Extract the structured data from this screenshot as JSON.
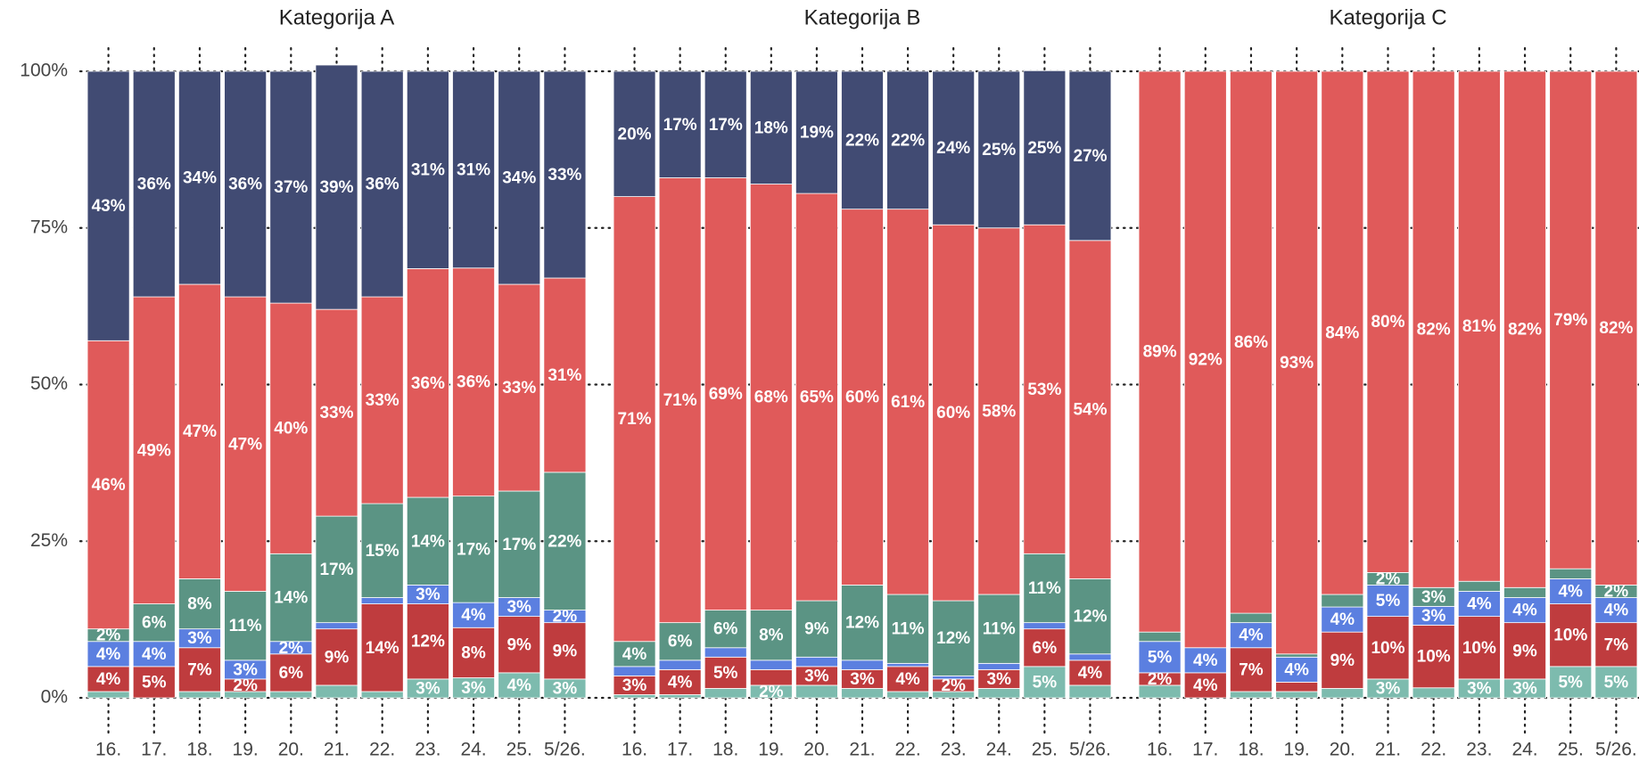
{
  "chart_data": [
    {
      "type": "bar",
      "stacked": true,
      "title": "Kategorija A",
      "categories": [
        "16.",
        "17.",
        "18.",
        "19.",
        "20.",
        "21.",
        "22.",
        "23.",
        "24.",
        "25.",
        "5/26."
      ],
      "ylim": [
        0,
        100
      ],
      "yticks": [
        {
          "value": 0,
          "label": "0%"
        },
        {
          "value": 25,
          "label": "25%"
        },
        {
          "value": 50,
          "label": "50%"
        },
        {
          "value": 75,
          "label": "75%"
        },
        {
          "value": 100,
          "label": "100%"
        }
      ],
      "grid": true,
      "series": [
        {
          "color": "#7dbbae",
          "values": [
            1,
            0,
            1,
            1,
            1,
            2,
            1,
            3,
            3.2,
            4,
            3
          ],
          "value_labels": [
            null,
            null,
            null,
            null,
            null,
            null,
            null,
            "3%",
            "3%",
            "4%",
            "3%"
          ]
        },
        {
          "color": "#bf3c3e",
          "values": [
            4,
            5,
            7,
            2,
            6,
            9,
            14,
            12,
            8,
            9,
            9
          ],
          "value_labels": [
            "4%",
            "5%",
            "7%",
            "2%",
            "6%",
            "9%",
            "14%",
            "12%",
            "8%",
            "9%",
            "9%"
          ]
        },
        {
          "color": "#5b7fe0",
          "values": [
            4,
            4,
            3,
            3,
            2,
            1,
            1,
            3,
            4,
            3,
            2
          ],
          "value_labels": [
            "4%",
            "4%",
            "3%",
            "3%",
            "2%",
            null,
            null,
            "3%",
            "4%",
            "3%",
            "2%"
          ]
        },
        {
          "color": "#5b9484",
          "values": [
            2,
            6,
            8,
            11,
            14,
            17,
            15,
            14,
            17,
            17,
            22
          ],
          "value_labels": [
            "2%",
            "6%",
            "8%",
            "11%",
            "14%",
            "17%",
            "15%",
            "14%",
            "17%",
            "17%",
            "22%"
          ]
        },
        {
          "color": "#e05a5a",
          "values": [
            46,
            49,
            47,
            47,
            40,
            33,
            33,
            36.5,
            36.4,
            33,
            31
          ],
          "value_labels": [
            "46%",
            "49%",
            "47%",
            "47%",
            "40%",
            "33%",
            "33%",
            "36%",
            "36%",
            "33%",
            "31%"
          ]
        },
        {
          "color": "#414b73",
          "values": [
            43,
            36,
            34,
            36,
            37,
            39,
            36,
            31.5,
            31.4,
            34,
            33
          ],
          "value_labels": [
            "43%",
            "36%",
            "34%",
            "36%",
            "37%",
            "39%",
            "36%",
            "31%",
            "31%",
            "34%",
            "33%"
          ]
        }
      ]
    },
    {
      "type": "bar",
      "stacked": true,
      "title": "Kategorija B",
      "categories": [
        "16.",
        "17.",
        "18.",
        "19.",
        "20.",
        "21.",
        "22.",
        "23.",
        "24.",
        "25.",
        "5/26."
      ],
      "ylim": [
        0,
        100
      ],
      "series": [
        {
          "color": "#7dbbae",
          "values": [
            0.5,
            0.5,
            1.5,
            2,
            2,
            1.5,
            1,
            1,
            1.5,
            5,
            2
          ],
          "value_labels": [
            null,
            null,
            null,
            "2%",
            null,
            null,
            null,
            null,
            null,
            "5%",
            null
          ]
        },
        {
          "color": "#bf3c3e",
          "values": [
            3,
            4,
            5,
            2.5,
            3,
            3,
            4,
            2,
            3,
            6,
            4
          ],
          "value_labels": [
            "3%",
            "4%",
            "5%",
            null,
            "3%",
            "3%",
            "4%",
            "2%",
            "3%",
            "6%",
            "4%"
          ]
        },
        {
          "color": "#5b7fe0",
          "values": [
            1.5,
            1.5,
            1.5,
            1.5,
            1.5,
            1.5,
            0.5,
            0.5,
            1,
            1,
            1
          ],
          "value_labels": [
            null,
            null,
            null,
            null,
            null,
            null,
            null,
            null,
            null,
            null,
            null
          ]
        },
        {
          "color": "#5b9484",
          "values": [
            4,
            6,
            6,
            8,
            9,
            12,
            11,
            12,
            11,
            11,
            12
          ],
          "value_labels": [
            "4%",
            "6%",
            "6%",
            "8%",
            "9%",
            "12%",
            "11%",
            "12%",
            "11%",
            "11%",
            "12%"
          ]
        },
        {
          "color": "#e05a5a",
          "values": [
            71,
            71,
            69,
            68,
            65,
            60,
            61.5,
            60,
            58.5,
            52.5,
            54
          ],
          "value_labels": [
            "71%",
            "71%",
            "69%",
            "68%",
            "65%",
            "60%",
            "61%",
            "60%",
            "58%",
            "53%",
            "54%"
          ]
        },
        {
          "color": "#414b73",
          "values": [
            20,
            17,
            17,
            18,
            19.5,
            22,
            22,
            24.5,
            25,
            24.6,
            27
          ],
          "value_labels": [
            "20%",
            "17%",
            "17%",
            "18%",
            "19%",
            "22%",
            "22%",
            "24%",
            "25%",
            "25%",
            "27%"
          ]
        }
      ]
    },
    {
      "type": "bar",
      "stacked": true,
      "title": "Kategorija C",
      "categories": [
        "16.",
        "17.",
        "18.",
        "19.",
        "20.",
        "21.",
        "22.",
        "23.",
        "24.",
        "25.",
        "5/26."
      ],
      "ylim": [
        0,
        100
      ],
      "series": [
        {
          "color": "#7dbbae",
          "values": [
            2,
            0,
            1,
            1,
            1.5,
            3,
            1.6,
            3,
            3,
            5,
            5
          ],
          "value_labels": [
            null,
            null,
            null,
            null,
            null,
            "3%",
            null,
            "3%",
            "3%",
            "5%",
            "5%"
          ]
        },
        {
          "color": "#bf3c3e",
          "values": [
            2,
            4,
            7,
            1.5,
            9,
            10,
            10,
            10,
            9,
            10,
            7
          ],
          "value_labels": [
            "2%",
            "4%",
            "7%",
            null,
            "9%",
            "10%",
            "10%",
            "10%",
            "9%",
            "10%",
            "7%"
          ]
        },
        {
          "color": "#5b7fe0",
          "values": [
            5,
            4,
            4,
            4,
            4,
            5,
            3,
            4,
            4,
            4,
            4
          ],
          "value_labels": [
            "5%",
            "4%",
            "4%",
            "4%",
            "4%",
            "5%",
            "3%",
            "4%",
            "4%",
            "4%",
            "4%"
          ]
        },
        {
          "color": "#5b9484",
          "values": [
            1.5,
            0,
            1.5,
            0.5,
            2,
            2,
            3,
            1.6,
            1.6,
            1.6,
            2
          ],
          "value_labels": [
            null,
            null,
            null,
            null,
            null,
            "2%",
            "3%",
            null,
            null,
            null,
            "2%"
          ]
        },
        {
          "color": "#e05a5a",
          "values": [
            89.5,
            92,
            86.5,
            93,
            83.5,
            80,
            82.4,
            81.4,
            82.4,
            79.4,
            82
          ],
          "value_labels": [
            "89%",
            "92%",
            "86%",
            "93%",
            "84%",
            "80%",
            "82%",
            "81%",
            "82%",
            "79%",
            "82%"
          ]
        }
      ]
    }
  ]
}
